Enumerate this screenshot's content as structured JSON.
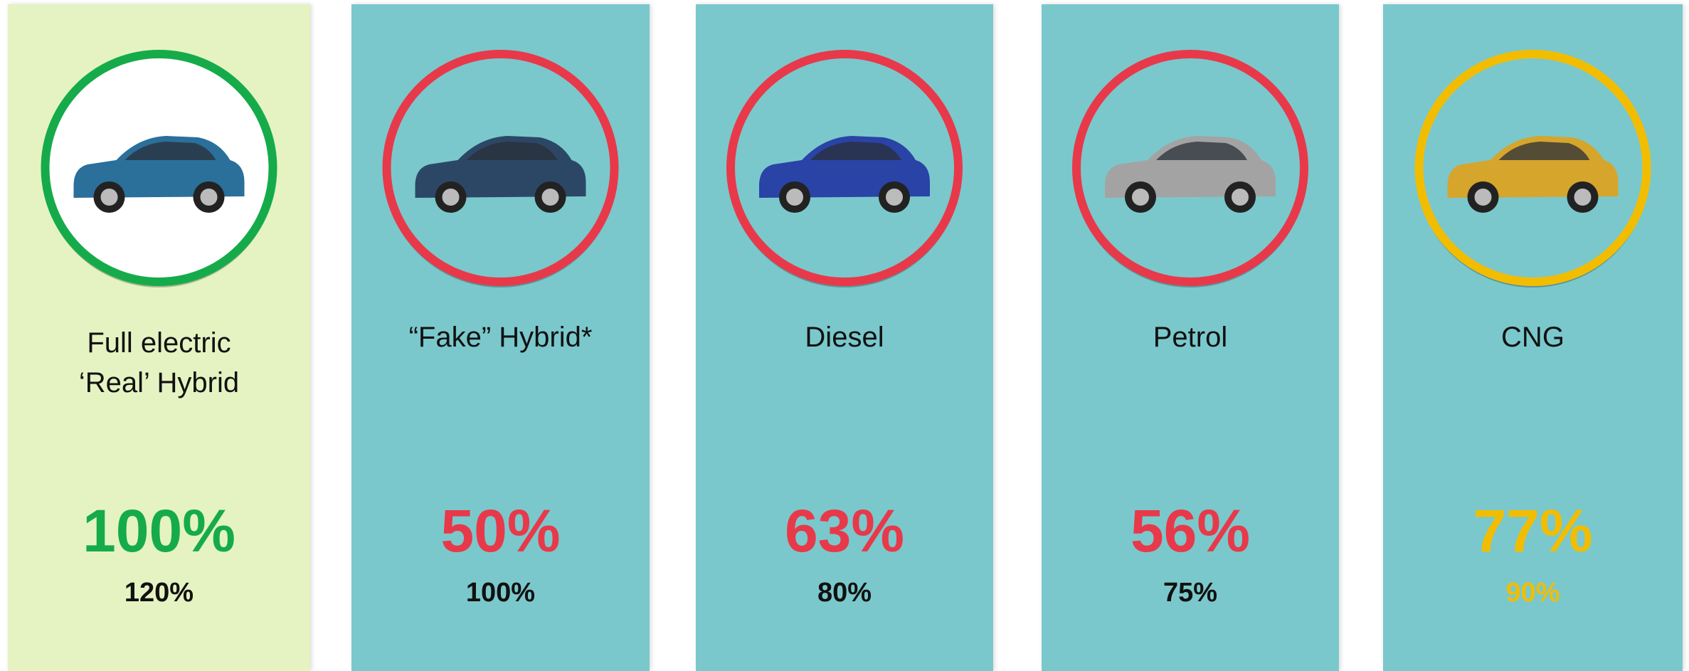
{
  "cards": [
    {
      "label": [
        "Full electric",
        "‘Real’ Hybrid"
      ],
      "primary": "100%",
      "secondary": "120%"
    },
    {
      "label": [
        "“Fake” Hybrid*"
      ],
      "primary": "50%",
      "secondary": "100%"
    },
    {
      "label": [
        "Diesel"
      ],
      "primary": "63%",
      "secondary": "80%"
    },
    {
      "label": [
        "Petrol"
      ],
      "primary": "56%",
      "secondary": "75%"
    },
    {
      "label": [
        "CNG"
      ],
      "primary": "77%",
      "secondary": "90%"
    }
  ]
}
